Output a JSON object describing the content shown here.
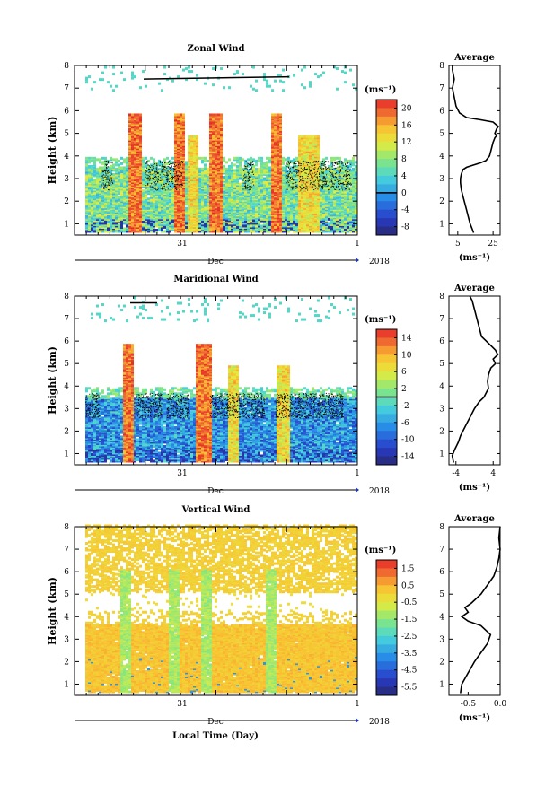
{
  "chart_data": [
    {
      "type": "heatmap",
      "title": "Zonal Wind",
      "ylabel": "Height (km)",
      "ylim": [
        0.5,
        8
      ],
      "yticks": [
        "1",
        "2",
        "3",
        "4",
        "5",
        "6",
        "7",
        "8"
      ],
      "xticks": [
        "31",
        "1"
      ],
      "month": "Dec",
      "year": "2018",
      "unit": "(ms⁻¹)",
      "colorbar": {
        "min": -10,
        "max": 22,
        "ticks": [
          "20",
          "16",
          "12",
          "8",
          "4",
          "0",
          "-4",
          "-8"
        ],
        "zero_line": 0
      },
      "profile": {
        "title": "Average",
        "xticks": [
          "5",
          "25"
        ],
        "xlim": [
          0,
          29
        ],
        "xlabel": "(ms⁻¹)",
        "points": [
          [
            14,
            0.6
          ],
          [
            13,
            0.8
          ],
          [
            12,
            1.0
          ],
          [
            11,
            1.3
          ],
          [
            10,
            1.6
          ],
          [
            9,
            1.9
          ],
          [
            8,
            2.2
          ],
          [
            7,
            2.5
          ],
          [
            6.5,
            2.8
          ],
          [
            6.5,
            3.0
          ],
          [
            7,
            3.2
          ],
          [
            8,
            3.4
          ],
          [
            10,
            3.5
          ],
          [
            14,
            3.6
          ],
          [
            18,
            3.7
          ],
          [
            21,
            3.8
          ],
          [
            23,
            4.0
          ],
          [
            24,
            4.3
          ],
          [
            25,
            4.6
          ],
          [
            26,
            4.8
          ],
          [
            27,
            4.9
          ],
          [
            26,
            5.0
          ],
          [
            27,
            5.2
          ],
          [
            28,
            5.3
          ],
          [
            25,
            5.5
          ],
          [
            18,
            5.6
          ],
          [
            10,
            5.7
          ],
          [
            6,
            5.9
          ],
          [
            4,
            6.2
          ],
          [
            3,
            6.6
          ],
          [
            2,
            7.0
          ],
          [
            3,
            7.4
          ],
          [
            2,
            7.8
          ],
          [
            2,
            8.0
          ]
        ]
      }
    },
    {
      "type": "heatmap",
      "title": "Maridional Wind",
      "ylabel": "Height (km)",
      "ylim": [
        0.5,
        8
      ],
      "yticks": [
        "1",
        "2",
        "3",
        "4",
        "5",
        "6",
        "7",
        "8"
      ],
      "xticks": [
        "31",
        "1"
      ],
      "month": "Dec",
      "year": "2018",
      "unit": "(ms⁻¹)",
      "colorbar": {
        "min": -16,
        "max": 16,
        "ticks": [
          "14",
          "10",
          "6",
          "2",
          "-2",
          "-6",
          "-10",
          "-14"
        ],
        "zero_line": 0
      },
      "profile": {
        "title": "Average",
        "xticks": [
          "-4",
          "4"
        ],
        "xlim": [
          -5.5,
          5.5
        ],
        "xlabel": "(ms⁻¹)",
        "points": [
          [
            -4.5,
            0.6
          ],
          [
            -4.8,
            0.9
          ],
          [
            -4.2,
            1.2
          ],
          [
            -3.5,
            1.5
          ],
          [
            -3,
            1.8
          ],
          [
            -2,
            2.2
          ],
          [
            -1,
            2.6
          ],
          [
            0,
            3.0
          ],
          [
            1,
            3.3
          ],
          [
            2,
            3.5
          ],
          [
            2.5,
            3.7
          ],
          [
            3,
            3.9
          ],
          [
            2.8,
            4.2
          ],
          [
            3,
            4.5
          ],
          [
            3.5,
            4.8
          ],
          [
            4.5,
            5.0
          ],
          [
            4,
            5.2
          ],
          [
            5,
            5.4
          ],
          [
            4.5,
            5.6
          ],
          [
            3.5,
            5.8
          ],
          [
            2.5,
            6.0
          ],
          [
            1.5,
            6.2
          ],
          [
            1,
            6.6
          ],
          [
            0.5,
            7.0
          ],
          [
            0,
            7.4
          ],
          [
            -0.5,
            7.8
          ],
          [
            -1,
            8.0
          ]
        ]
      }
    },
    {
      "type": "heatmap",
      "title": "Vertical Wind",
      "ylabel": "Height (km)",
      "xlabel": "Local Time (Day)",
      "ylim": [
        0.5,
        8
      ],
      "yticks": [
        "1",
        "2",
        "3",
        "4",
        "5",
        "6",
        "7",
        "8"
      ],
      "xticks": [
        "31",
        "1"
      ],
      "month": "Dec",
      "year": "2018",
      "unit": "(ms⁻¹)",
      "colorbar": {
        "min": -7,
        "max": 2,
        "ticks": [
          "1.5",
          "0.5",
          "-0.5",
          "-1.5",
          "-2.5",
          "-3.5",
          "-4.5",
          "-5.5"
        ]
      },
      "profile": {
        "title": "Average",
        "xticks": [
          "-0.5",
          "0.0"
        ],
        "xlim": [
          -0.8,
          0.0
        ],
        "xlabel": "(ms⁻¹)",
        "points": [
          [
            -0.62,
            0.6
          ],
          [
            -0.6,
            1.0
          ],
          [
            -0.5,
            1.5
          ],
          [
            -0.4,
            2.0
          ],
          [
            -0.3,
            2.4
          ],
          [
            -0.2,
            2.8
          ],
          [
            -0.15,
            3.2
          ],
          [
            -0.3,
            3.6
          ],
          [
            -0.5,
            3.8
          ],
          [
            -0.6,
            4.0
          ],
          [
            -0.5,
            4.2
          ],
          [
            -0.55,
            4.4
          ],
          [
            -0.45,
            4.6
          ],
          [
            -0.3,
            5.0
          ],
          [
            -0.2,
            5.4
          ],
          [
            -0.1,
            5.8
          ],
          [
            -0.05,
            6.2
          ],
          [
            -0.02,
            6.6
          ],
          [
            0,
            7.0
          ],
          [
            -0.02,
            7.5
          ],
          [
            0,
            8.0
          ]
        ]
      }
    }
  ]
}
